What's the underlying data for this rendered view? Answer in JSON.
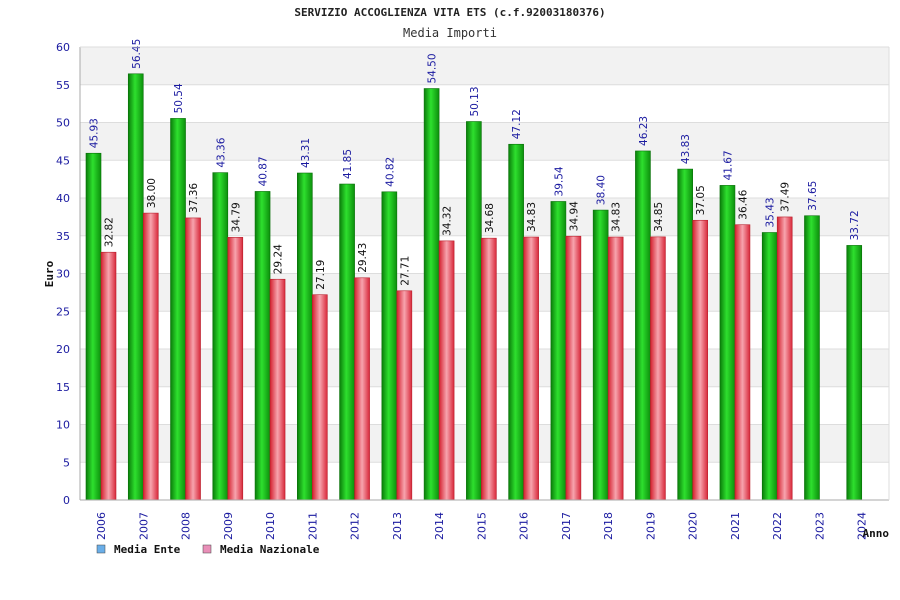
{
  "chart_data": {
    "type": "bar",
    "title": "SERVIZIO ACCOGLIENZA VITA ETS (c.f.92003180376)",
    "subtitle": "Media Importi",
    "xlabel": "Anno",
    "ylabel": "Euro",
    "ylim": [
      0,
      60
    ],
    "ytick_step": 5,
    "grid": true,
    "legend_position": "bottom-left",
    "categories": [
      "2006",
      "2007",
      "2008",
      "2009",
      "2010",
      "2011",
      "2012",
      "2013",
      "2014",
      "2015",
      "2016",
      "2017",
      "2018",
      "2019",
      "2020",
      "2021",
      "2022",
      "2023",
      "2024"
    ],
    "series": [
      {
        "name": "Media Ente",
        "color": "#1fb51f",
        "legend_color": "#6aaee8",
        "values": [
          45.93,
          56.45,
          50.54,
          43.36,
          40.87,
          43.31,
          41.85,
          40.82,
          54.5,
          50.13,
          47.12,
          39.54,
          38.4,
          46.23,
          43.83,
          41.67,
          35.43,
          37.65,
          33.72
        ],
        "labels": [
          "45.93",
          "56.45",
          "50.54",
          "43.36",
          "40.87",
          "43.31",
          "41.85",
          "40.82",
          "54.50",
          "50.13",
          "47.12",
          "39.54",
          "38.40",
          "46.23",
          "43.83",
          "41.67",
          "35.43",
          "37.65",
          "33.72"
        ]
      },
      {
        "name": "Media Nazionale",
        "color": "#e8404e",
        "legend_color": "#e98fb8",
        "values": [
          32.82,
          38.0,
          37.36,
          34.79,
          29.24,
          27.19,
          29.43,
          27.71,
          34.32,
          34.68,
          34.83,
          34.94,
          34.83,
          34.85,
          37.05,
          36.46,
          37.49,
          null,
          null
        ],
        "labels": [
          "32.82",
          "38.00",
          "37.36",
          "34.79",
          "29.24",
          "27.19",
          "29.43",
          "27.71",
          "34.32",
          "34.68",
          "34.83",
          "34.94",
          "34.83",
          "34.85",
          "37.05",
          "36.46",
          "37.49",
          null,
          null
        ]
      }
    ]
  }
}
